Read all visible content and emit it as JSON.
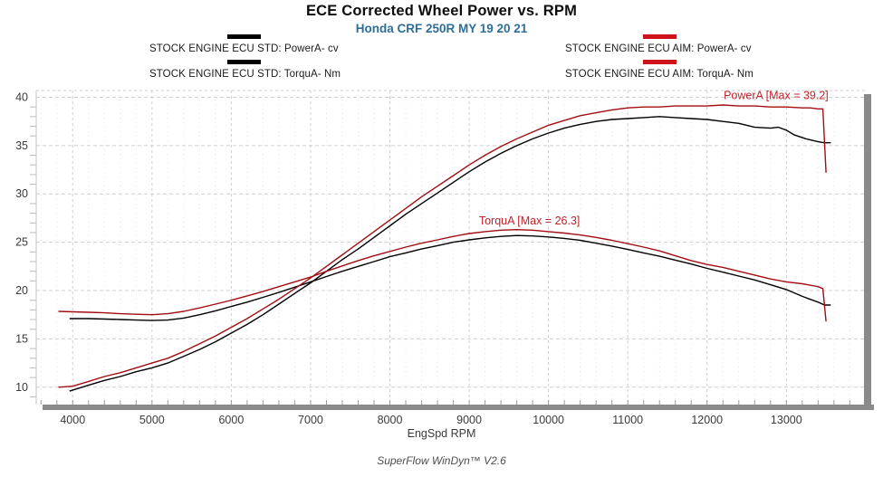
{
  "header": {
    "title": "ECE Corrected Wheel Power vs. RPM",
    "subtitle": "Honda CRF 250R MY 19 20 21",
    "subtitle_color": "#2e6e96"
  },
  "legend": {
    "entries": [
      {
        "label": "STOCK ENGINE ECU STD: PowerA- cv",
        "color": "#000000"
      },
      {
        "label": "STOCK ENGINE ECU STD: TorquA- Nm",
        "color": "#000000"
      },
      {
        "label": "STOCK ENGINE ECU AIM: PowerA- cv",
        "color": "#ce121c"
      },
      {
        "label": "STOCK ENGINE ECU AIM: TorquA- Nm",
        "color": "#ce121c"
      }
    ]
  },
  "chart_data": {
    "type": "line",
    "title": "ECE Corrected Wheel Power vs. RPM",
    "subtitle": "Honda CRF 250R MY 19 20 21",
    "xlabel": "EngSpd RPM",
    "ylabel": "",
    "xlim": [
      3540,
      13990
    ],
    "ylim": [
      8.2,
      40.7
    ],
    "x_ticks": [
      4000,
      5000,
      6000,
      7000,
      8000,
      9000,
      10000,
      11000,
      12000,
      13000
    ],
    "y_ticks": [
      10,
      15,
      20,
      25,
      30,
      35,
      40
    ],
    "x_minor_step": 200,
    "grid": true,
    "legend_position": "top",
    "grid_color": "#cfcfcf",
    "minor_grid_color": "#e4e4e4",
    "axis_bar_color": "#8a8a8a",
    "annotations": [
      {
        "text": "PowerA [Max = 39.2]",
        "x": 12870,
        "y": 39.8,
        "color": "#c0242c"
      },
      {
        "text": "TorquA [Max = 26.3]",
        "x": 9760,
        "y": 26.85,
        "color": "#c0242c"
      }
    ],
    "series": [
      {
        "name": "STOCK ENGINE ECU STD: PowerA- cv",
        "color": "#000000",
        "points": [
          [
            3960,
            9.6
          ],
          [
            4200,
            10.2
          ],
          [
            4400,
            10.7
          ],
          [
            4600,
            11.1
          ],
          [
            4800,
            11.6
          ],
          [
            5000,
            12.0
          ],
          [
            5200,
            12.5
          ],
          [
            5400,
            13.2
          ],
          [
            5600,
            13.9
          ],
          [
            5800,
            14.7
          ],
          [
            6000,
            15.6
          ],
          [
            6200,
            16.5
          ],
          [
            6400,
            17.5
          ],
          [
            6600,
            18.6
          ],
          [
            6800,
            19.7
          ],
          [
            7000,
            20.8
          ],
          [
            7200,
            22.0
          ],
          [
            7400,
            23.2
          ],
          [
            7600,
            24.3
          ],
          [
            7800,
            25.5
          ],
          [
            8000,
            26.7
          ],
          [
            8200,
            27.9
          ],
          [
            8400,
            29.0
          ],
          [
            8600,
            30.1
          ],
          [
            8800,
            31.2
          ],
          [
            9000,
            32.3
          ],
          [
            9200,
            33.3
          ],
          [
            9400,
            34.2
          ],
          [
            9600,
            35.0
          ],
          [
            9800,
            35.7
          ],
          [
            10000,
            36.3
          ],
          [
            10200,
            36.8
          ],
          [
            10400,
            37.2
          ],
          [
            10600,
            37.5
          ],
          [
            10800,
            37.7
          ],
          [
            11000,
            37.8
          ],
          [
            11200,
            37.9
          ],
          [
            11400,
            38.0
          ],
          [
            11600,
            37.9
          ],
          [
            11800,
            37.8
          ],
          [
            12000,
            37.7
          ],
          [
            12200,
            37.5
          ],
          [
            12400,
            37.3
          ],
          [
            12600,
            36.9
          ],
          [
            12800,
            36.8
          ],
          [
            12900,
            36.9
          ],
          [
            13000,
            36.6
          ],
          [
            13100,
            36.1
          ],
          [
            13250,
            35.7
          ],
          [
            13400,
            35.4
          ],
          [
            13480,
            35.3
          ],
          [
            13560,
            35.3
          ]
        ]
      },
      {
        "name": "STOCK ENGINE ECU STD: TorquA- Nm",
        "color": "#000000",
        "points": [
          [
            3960,
            17.1
          ],
          [
            4200,
            17.1
          ],
          [
            4400,
            17.05
          ],
          [
            4600,
            17.0
          ],
          [
            4800,
            16.95
          ],
          [
            5000,
            16.9
          ],
          [
            5200,
            16.95
          ],
          [
            5400,
            17.15
          ],
          [
            5600,
            17.5
          ],
          [
            5800,
            17.9
          ],
          [
            6000,
            18.35
          ],
          [
            6200,
            18.8
          ],
          [
            6400,
            19.3
          ],
          [
            6600,
            19.8
          ],
          [
            6800,
            20.35
          ],
          [
            7000,
            20.9
          ],
          [
            7200,
            21.45
          ],
          [
            7400,
            22.0
          ],
          [
            7600,
            22.5
          ],
          [
            7800,
            23.0
          ],
          [
            8000,
            23.5
          ],
          [
            8200,
            23.9
          ],
          [
            8400,
            24.3
          ],
          [
            8600,
            24.65
          ],
          [
            8800,
            25.0
          ],
          [
            9000,
            25.25
          ],
          [
            9200,
            25.45
          ],
          [
            9400,
            25.6
          ],
          [
            9600,
            25.7
          ],
          [
            9800,
            25.65
          ],
          [
            10000,
            25.55
          ],
          [
            10200,
            25.4
          ],
          [
            10400,
            25.2
          ],
          [
            10600,
            24.9
          ],
          [
            10800,
            24.6
          ],
          [
            11000,
            24.25
          ],
          [
            11200,
            23.9
          ],
          [
            11400,
            23.55
          ],
          [
            11600,
            23.15
          ],
          [
            11800,
            22.75
          ],
          [
            12000,
            22.3
          ],
          [
            12200,
            21.9
          ],
          [
            12400,
            21.5
          ],
          [
            12600,
            21.1
          ],
          [
            12800,
            20.6
          ],
          [
            13000,
            20.1
          ],
          [
            13200,
            19.4
          ],
          [
            13400,
            18.8
          ],
          [
            13480,
            18.5
          ],
          [
            13560,
            18.5
          ]
        ]
      },
      {
        "name": "STOCK ENGINE ECU AIM: PowerA- cv",
        "color": "#a30d12",
        "points": [
          [
            3820,
            10.0
          ],
          [
            4000,
            10.1
          ],
          [
            4200,
            10.6
          ],
          [
            4400,
            11.1
          ],
          [
            4600,
            11.5
          ],
          [
            4800,
            12.0
          ],
          [
            5000,
            12.5
          ],
          [
            5200,
            13.0
          ],
          [
            5400,
            13.7
          ],
          [
            5600,
            14.5
          ],
          [
            5800,
            15.3
          ],
          [
            6000,
            16.2
          ],
          [
            6200,
            17.1
          ],
          [
            6400,
            18.1
          ],
          [
            6600,
            19.1
          ],
          [
            6800,
            20.2
          ],
          [
            7000,
            21.3
          ],
          [
            7200,
            22.5
          ],
          [
            7400,
            23.7
          ],
          [
            7600,
            24.9
          ],
          [
            7800,
            26.1
          ],
          [
            8000,
            27.3
          ],
          [
            8200,
            28.5
          ],
          [
            8400,
            29.7
          ],
          [
            8600,
            30.8
          ],
          [
            8800,
            31.9
          ],
          [
            9000,
            33.0
          ],
          [
            9200,
            34.0
          ],
          [
            9400,
            34.9
          ],
          [
            9600,
            35.7
          ],
          [
            9800,
            36.4
          ],
          [
            10000,
            37.1
          ],
          [
            10200,
            37.6
          ],
          [
            10400,
            38.1
          ],
          [
            10600,
            38.4
          ],
          [
            10800,
            38.7
          ],
          [
            11000,
            38.9
          ],
          [
            11200,
            39.0
          ],
          [
            11400,
            39.0
          ],
          [
            11600,
            39.1
          ],
          [
            11800,
            39.1
          ],
          [
            12000,
            39.1
          ],
          [
            12200,
            39.2
          ],
          [
            12400,
            39.1
          ],
          [
            12600,
            39.1
          ],
          [
            12800,
            39.0
          ],
          [
            13000,
            39.0
          ],
          [
            13200,
            38.9
          ],
          [
            13300,
            38.9
          ],
          [
            13400,
            38.8
          ],
          [
            13460,
            38.8
          ],
          [
            13500,
            32.2
          ]
        ]
      },
      {
        "name": "STOCK ENGINE ECU AIM: TorquA- Nm",
        "color": "#a30d12",
        "points": [
          [
            3820,
            17.85
          ],
          [
            4000,
            17.8
          ],
          [
            4200,
            17.75
          ],
          [
            4400,
            17.7
          ],
          [
            4600,
            17.6
          ],
          [
            4800,
            17.55
          ],
          [
            5000,
            17.5
          ],
          [
            5200,
            17.6
          ],
          [
            5400,
            17.85
          ],
          [
            5600,
            18.2
          ],
          [
            5800,
            18.6
          ],
          [
            6000,
            19.0
          ],
          [
            6200,
            19.45
          ],
          [
            6400,
            19.9
          ],
          [
            6600,
            20.4
          ],
          [
            6800,
            20.9
          ],
          [
            7000,
            21.4
          ],
          [
            7200,
            22.0
          ],
          [
            7400,
            22.55
          ],
          [
            7600,
            23.1
          ],
          [
            7800,
            23.6
          ],
          [
            8000,
            24.05
          ],
          [
            8200,
            24.5
          ],
          [
            8400,
            24.9
          ],
          [
            8600,
            25.25
          ],
          [
            8800,
            25.6
          ],
          [
            9000,
            25.9
          ],
          [
            9200,
            26.1
          ],
          [
            9400,
            26.25
          ],
          [
            9600,
            26.3
          ],
          [
            9800,
            26.25
          ],
          [
            10000,
            26.1
          ],
          [
            10200,
            25.95
          ],
          [
            10400,
            25.75
          ],
          [
            10600,
            25.5
          ],
          [
            10800,
            25.2
          ],
          [
            11000,
            24.85
          ],
          [
            11200,
            24.5
          ],
          [
            11400,
            24.1
          ],
          [
            11600,
            23.6
          ],
          [
            11800,
            23.1
          ],
          [
            12000,
            22.7
          ],
          [
            12200,
            22.4
          ],
          [
            12400,
            22.0
          ],
          [
            12600,
            21.6
          ],
          [
            12800,
            21.2
          ],
          [
            13000,
            20.9
          ],
          [
            13200,
            20.7
          ],
          [
            13400,
            20.4
          ],
          [
            13460,
            20.2
          ],
          [
            13500,
            16.8
          ]
        ]
      }
    ]
  },
  "x_axis": {
    "label": "EngSpd RPM"
  },
  "footer": {
    "credit": "SuperFlow WinDyn™ V2.6"
  }
}
